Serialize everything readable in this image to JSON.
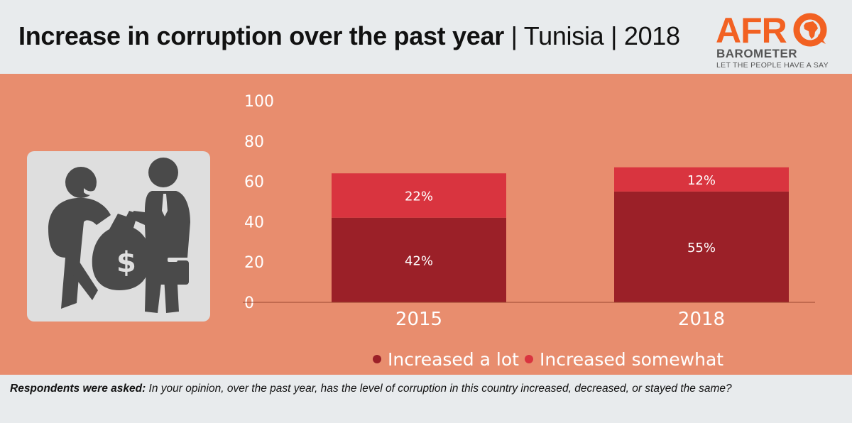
{
  "header": {
    "title_bold": "Increase in corruption over the past year",
    "title_sep1": " | ",
    "title_country": "Tunisia",
    "title_sep2": " | ",
    "title_year": "2018"
  },
  "logo": {
    "afr": "AFR",
    "barometer": "BAROMETER",
    "tagline": "LET THE PEOPLE HAVE A SAY"
  },
  "colors": {
    "accent_orange": "#f26122",
    "panel_bg": "#e88d6e",
    "series_a_lot": "#9b2028",
    "series_somewhat": "#d9343f"
  },
  "chart_data": {
    "type": "bar",
    "stacked": true,
    "title": "Increase in corruption over the past year | Tunisia | 2018",
    "categories": [
      "2015",
      "2018"
    ],
    "series": [
      {
        "name": "Increased a lot",
        "values": [
          42,
          55
        ],
        "labels": [
          "42%",
          "55%"
        ],
        "color": "#9b2028"
      },
      {
        "name": "Increased somewhat",
        "values": [
          22,
          12
        ],
        "labels": [
          "22%",
          "12%"
        ],
        "color": "#d9343f"
      }
    ],
    "yticks": [
      "0",
      "20",
      "40",
      "60",
      "80",
      "100"
    ],
    "ylim": [
      0,
      100
    ],
    "xlabel": "",
    "ylabel": "",
    "legend_position": "bottom"
  },
  "footer": {
    "question_lead": "Respondents were asked:",
    "question_text": " In your opinion, over the past year, has the level of corruption in this country increased, decreased, or stayed the same?"
  }
}
